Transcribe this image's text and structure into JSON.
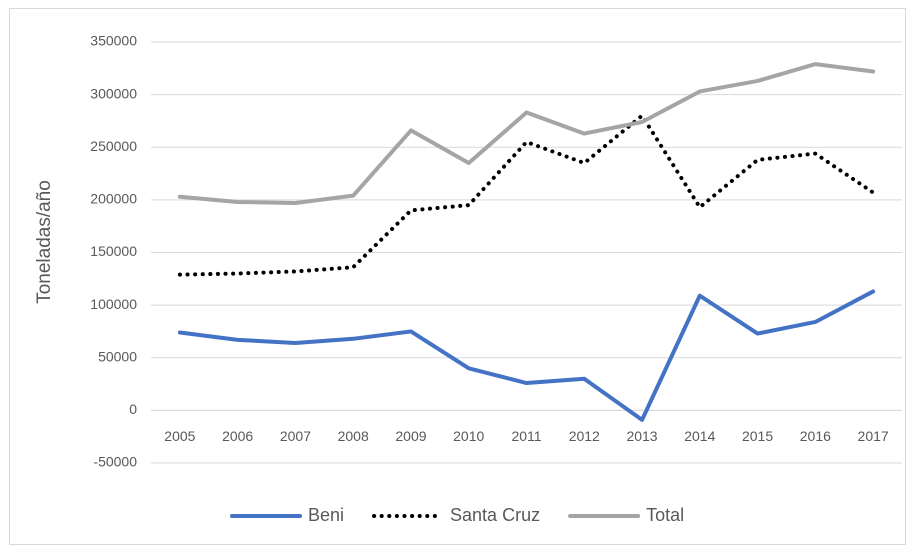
{
  "chart_data": {
    "type": "line",
    "y_label": "Toneladas/año",
    "categories": [
      "2005",
      "2006",
      "2007",
      "2008",
      "2009",
      "2010",
      "2011",
      "2012",
      "2013",
      "2014",
      "2015",
      "2016",
      "2017"
    ],
    "series": [
      {
        "name": "Beni",
        "color": "#4472c4",
        "line_style": "solid",
        "values": [
          74000,
          67000,
          64000,
          68000,
          75000,
          40000,
          26000,
          30000,
          -9000,
          109000,
          73000,
          84000,
          113000
        ]
      },
      {
        "name": "Santa Cruz",
        "color": "#000000",
        "line_style": "dotted",
        "values": [
          129000,
          130000,
          132000,
          136000,
          190000,
          195000,
          255000,
          235000,
          280000,
          193000,
          238000,
          244000,
          207000
        ]
      },
      {
        "name": "Total",
        "color": "#a5a5a5",
        "line_style": "solid",
        "values": [
          203000,
          198000,
          197000,
          204000,
          266000,
          235000,
          283000,
          263000,
          274000,
          303000,
          313000,
          329000,
          322000
        ]
      }
    ],
    "ylim": [
      -50000,
      350000
    ],
    "yticks": [
      -50000,
      0,
      50000,
      100000,
      150000,
      200000,
      250000,
      300000,
      350000
    ],
    "grid": true,
    "legend": "bottom"
  }
}
